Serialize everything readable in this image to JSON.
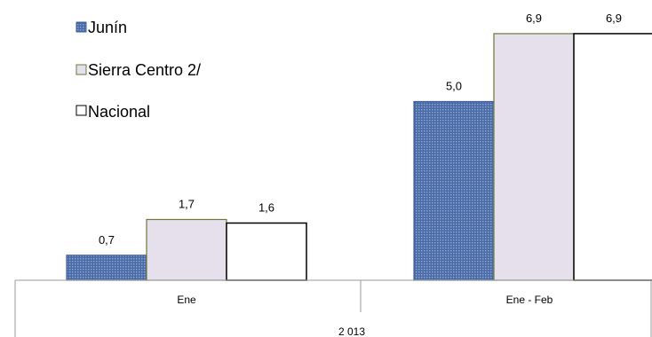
{
  "chart_data": {
    "type": "bar",
    "categories": [
      "Ene",
      "Ene - Feb"
    ],
    "group_label": "2 013",
    "series": [
      {
        "name": "Junín",
        "values": [
          0.7,
          5.0
        ],
        "labels": [
          "0,7",
          "5,0"
        ],
        "color": "#5b7bb8",
        "pattern": "dotted"
      },
      {
        "name": "Sierra Centro 2/",
        "values": [
          1.7,
          6.9
        ],
        "labels": [
          "1,7",
          "6,9"
        ],
        "color": "#e6e0ec",
        "pattern": "solid"
      },
      {
        "name": "Nacional",
        "values": [
          1.6,
          6.9
        ],
        "labels": [
          "1,6",
          "6,9"
        ],
        "color": "#ffffff",
        "pattern": "solid"
      }
    ],
    "legend_position": "top-left",
    "grid": false
  }
}
